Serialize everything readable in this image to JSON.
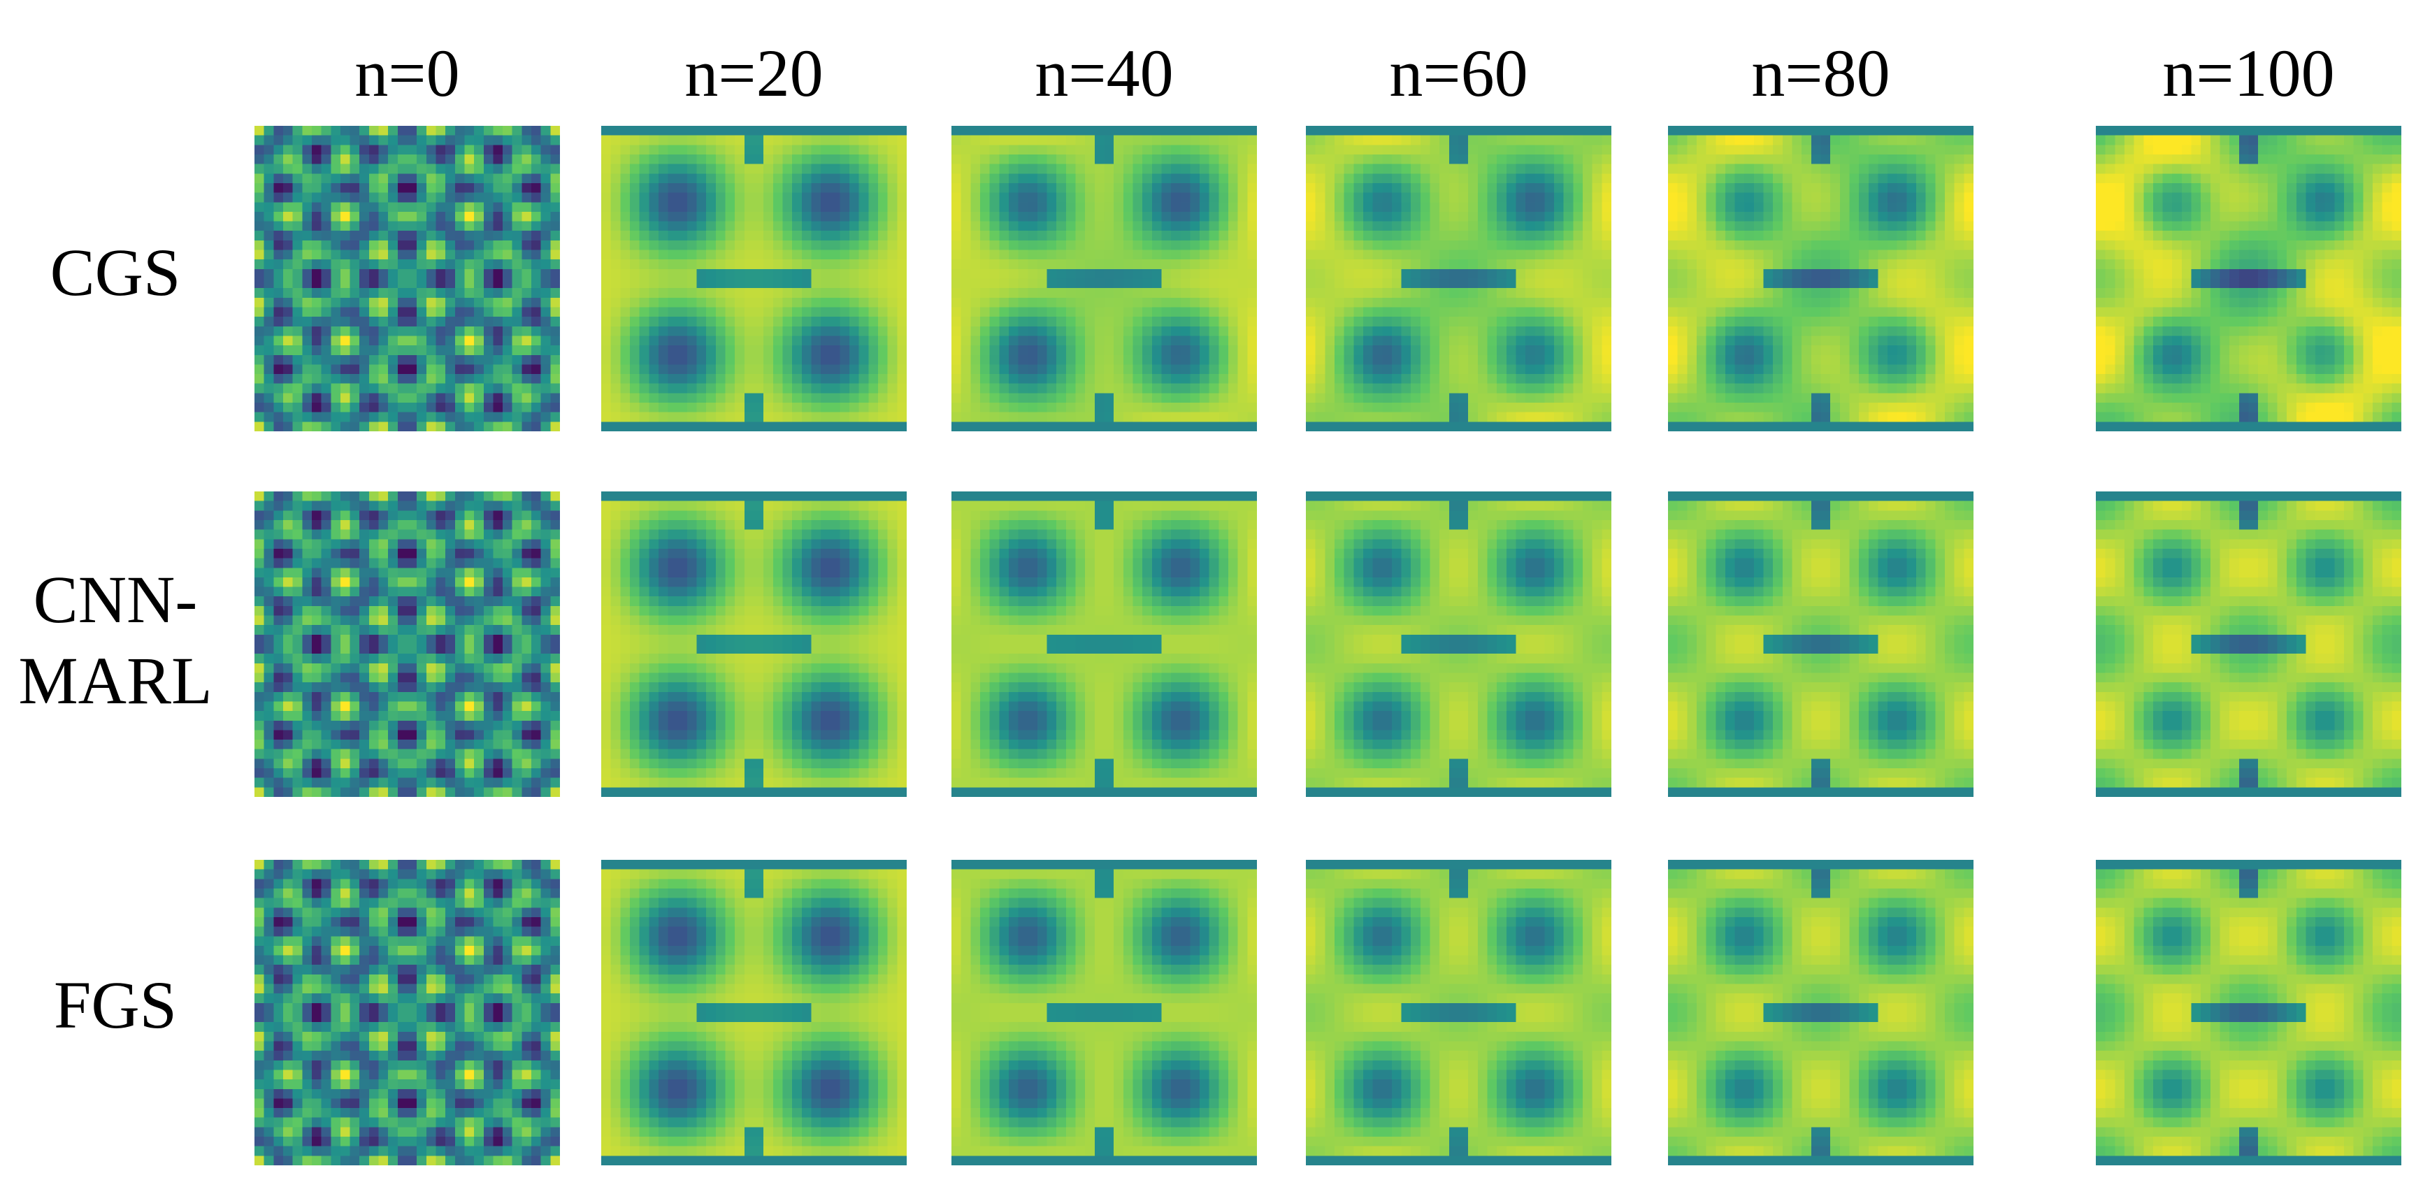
{
  "figure": {
    "columns": [
      "n=0",
      "n=20",
      "n=40",
      "n=60",
      "n=80",
      "n=100"
    ],
    "rows": [
      {
        "label": "CGS"
      },
      {
        "label": "CNN-\nMARL"
      },
      {
        "label": "FGS"
      }
    ],
    "colormap": {
      "name": "viridis",
      "stops": [
        "#440154",
        "#3b528b",
        "#21918c",
        "#5ec962",
        "#fde725"
      ]
    }
  }
}
